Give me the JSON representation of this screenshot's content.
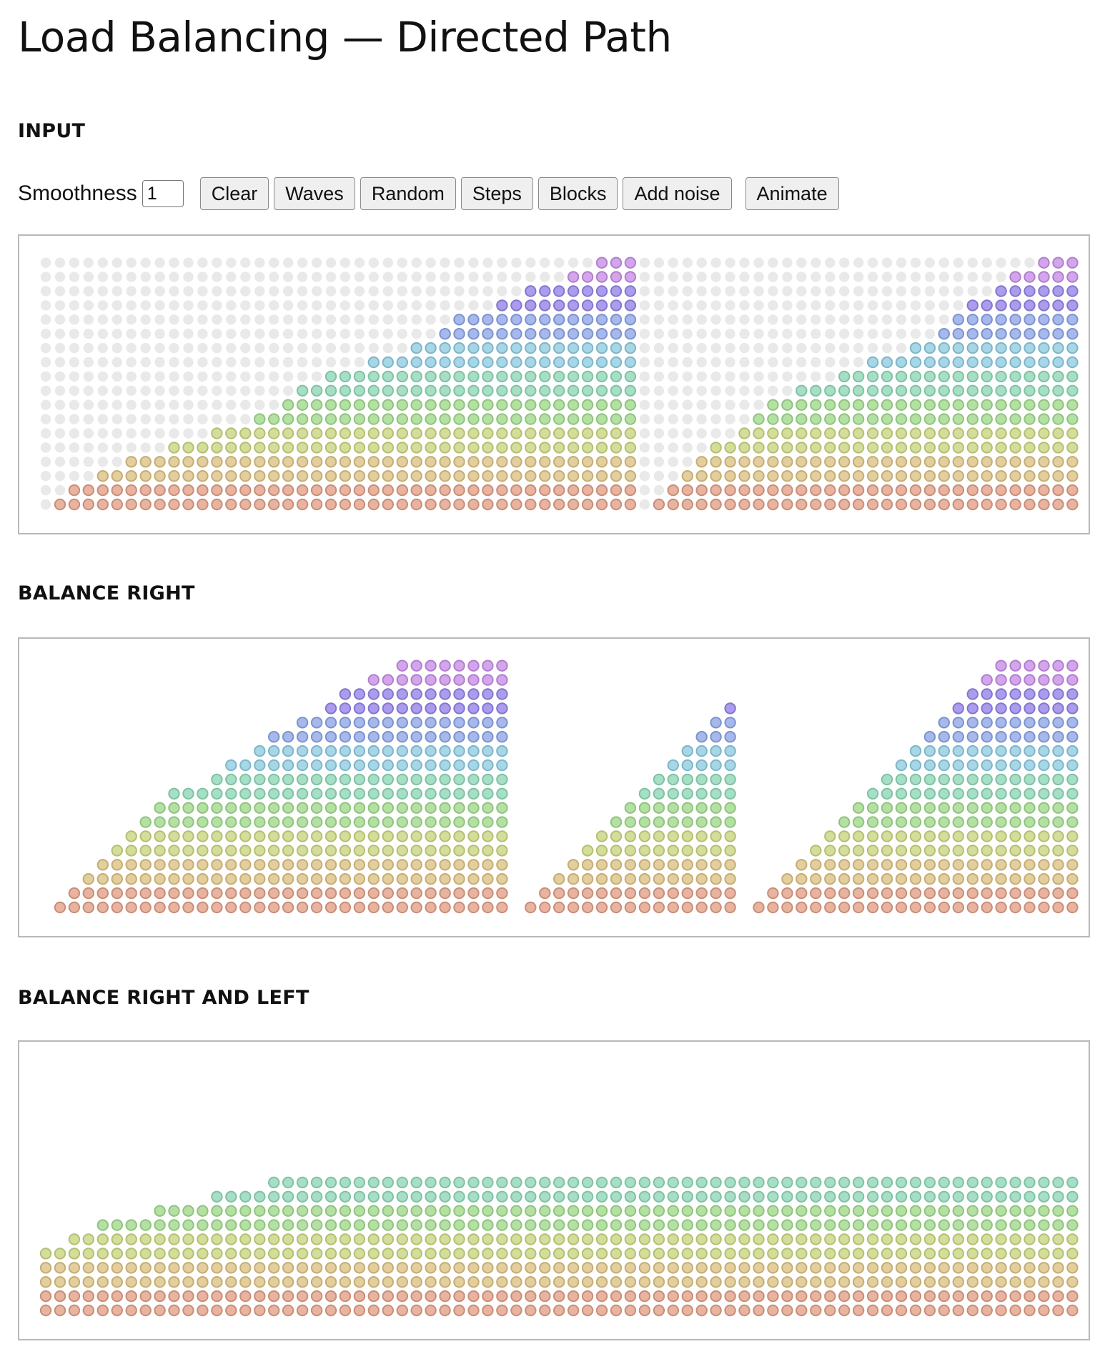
{
  "page": {
    "title": "Load Balancing — Directed Path"
  },
  "sections": {
    "input": "INPUT",
    "balance_right": "BALANCE RIGHT",
    "balance_right_left": "BALANCE RIGHT AND LEFT"
  },
  "controls": {
    "smoothness_label": "Smoothness",
    "smoothness_value": "1",
    "buttons": {
      "clear": "Clear",
      "waves": "Waves",
      "random": "Random",
      "steps": "Steps",
      "blocks": "Blocks",
      "add_noise": "Add noise",
      "animate": "Animate"
    }
  },
  "grid": {
    "columns": 73,
    "rows": 18,
    "empty_color": "#e9e9e9",
    "level_colors": [
      "#e8b49f",
      "#e3ce9d",
      "#d5dd9b",
      "#b5e0a4",
      "#a6dfc6",
      "#a7d6e6",
      "#a6b8ec",
      "#ab9ded",
      "#d3a6ec",
      "#eda6cf"
    ],
    "level_strokes": [
      "#c98d78",
      "#c5ad74",
      "#b4bf71",
      "#8fc47d",
      "#7fc2a4",
      "#7db6c9",
      "#7d93cf",
      "#8675d0",
      "#b27ecf",
      "#d07dae"
    ]
  },
  "input_columns": [
    0,
    1,
    2,
    2,
    3,
    3,
    4,
    4,
    4,
    5,
    5,
    5,
    6,
    6,
    6,
    7,
    7,
    8,
    9,
    9,
    10,
    10,
    10,
    11,
    11,
    11,
    12,
    12,
    13,
    14,
    14,
    14,
    15,
    15,
    16,
    16,
    16,
    17,
    17,
    18,
    18,
    18,
    0,
    1,
    2,
    3,
    4,
    5,
    5,
    6,
    7,
    8,
    8,
    9,
    9,
    9,
    10,
    10,
    11,
    11,
    11,
    12,
    12,
    13,
    14,
    15,
    15,
    16,
    17,
    17,
    18,
    18,
    18
  ],
  "balance_right_columns": [
    0,
    1,
    2,
    3,
    4,
    5,
    6,
    7,
    8,
    9,
    9,
    9,
    10,
    11,
    11,
    12,
    13,
    13,
    14,
    14,
    15,
    16,
    16,
    17,
    17,
    18,
    19,
    20,
    21,
    22,
    23,
    24,
    25,
    0,
    1,
    2,
    3,
    4,
    5,
    6,
    7,
    8,
    9,
    10,
    11,
    12,
    13,
    14,
    15,
    0,
    1,
    2,
    3,
    4,
    5,
    6,
    7,
    8,
    9,
    10,
    11,
    12,
    13,
    14,
    15,
    16,
    17,
    18,
    19,
    20,
    21,
    22,
    23
  ],
  "balance_right_left_columns": [
    5,
    5,
    6,
    6,
    7,
    7,
    7,
    7,
    8,
    8,
    8,
    8,
    9,
    9,
    9,
    9,
    10,
    10,
    10,
    10,
    10,
    10,
    10,
    10,
    10,
    10,
    10,
    10,
    10,
    10,
    10,
    10,
    10,
    10,
    10,
    10,
    10,
    10,
    10,
    10,
    10,
    10,
    10,
    10,
    10,
    10,
    10,
    10,
    10,
    10,
    10,
    10,
    10,
    10,
    10,
    10,
    10,
    10,
    10,
    10,
    10,
    10,
    10,
    10,
    10,
    10,
    10,
    10,
    10,
    10,
    10,
    10,
    10
  ]
}
